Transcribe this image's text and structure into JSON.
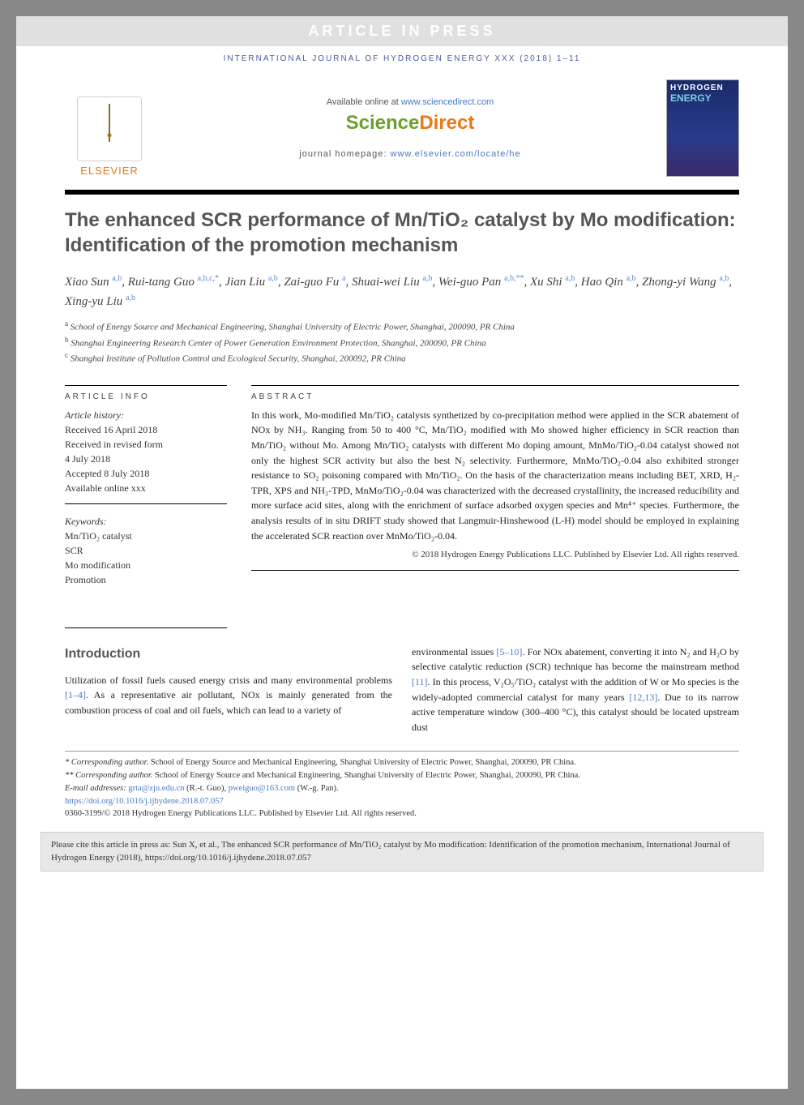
{
  "banner": "ARTICLE IN PRESS",
  "journal_header_line": "INTERNATIONAL JOURNAL OF HYDROGEN ENERGY XXX (2018) 1–11",
  "available_prefix": "Available online at ",
  "available_link": "www.sciencedirect.com",
  "sd_logo_s": "Science",
  "sd_logo_d": "Direct",
  "homepage_prefix": "journal homepage: ",
  "homepage_link": "www.elsevier.com/locate/he",
  "elsevier_label": "ELSEVIER",
  "cover_line1": "HYDROGEN",
  "cover_line2": "ENERGY",
  "title": "The enhanced SCR performance of Mn/TiO₂ catalyst by Mo modification: Identification of the promotion mechanism",
  "authors_html": "Xiao Sun <span class='sup'>a,b</span>, Rui-tang Guo <span class='sup'>a,b,c,*</span>, Jian Liu <span class='sup'>a,b</span>, Zai-guo Fu <span class='sup'>a</span>, Shuai-wei Liu <span class='sup'>a,b</span>, Wei-guo Pan <span class='sup'>a,b,**</span>, Xu Shi <span class='sup'>a,b</span>, Hao Qin <span class='sup'>a,b</span>, Zhong-yi Wang <span class='sup'>a,b</span>, Xing-yu Liu <span class='sup'>a,b</span>",
  "affiliations": {
    "a": "School of Energy Source and Mechanical Engineering, Shanghai University of Electric Power, Shanghai, 200090, PR China",
    "b": "Shanghai Engineering Research Center of Power Generation Environment Protection, Shanghai, 200090, PR China",
    "c": "Shanghai Institute of Pollution Control and Ecological Security, Shanghai, 200092, PR China"
  },
  "article_info_head": "ARTICLE INFO",
  "abstract_head": "ABSTRACT",
  "history_label": "Article history:",
  "history": {
    "received": "Received 16 April 2018",
    "revised1": "Received in revised form",
    "revised2": "4 July 2018",
    "accepted": "Accepted 8 July 2018",
    "online": "Available online xxx"
  },
  "keywords_label": "Keywords:",
  "keywords": [
    "Mn/TiO₂ catalyst",
    "SCR",
    "Mo modification",
    "Promotion"
  ],
  "abstract": "In this work, Mo-modified Mn/TiO₂ catalysts synthetized by co-precipitation method were applied in the SCR abatement of NOx by NH₃. Ranging from 50 to 400 °C, Mn/TiO₂ modified with Mo showed higher efficiency in SCR reaction than Mn/TiO₂ without Mo. Among Mn/TiO₂ catalysts with different Mo doping amount, MnMo/TiO₂-0.04 catalyst showed not only the highest SCR activity but also the best N₂ selectivity. Furthermore, MnMo/TiO₂-0.04 also exhibited stronger resistance to SO₂ poisoning compared with Mn/TiO₂. On the basis of the characterization means including BET, XRD, H₂-TPR, XPS and NH₃-TPD, MnMo/TiO₂-0.04 was characterized with the decreased crystallinity, the increased reducibility and more surface acid sites, along with the enrichment of surface adsorbed oxygen species and Mn⁴⁺ species. Furthermore, the analysis results of in situ DRIFT study showed that Langmuir-Hinshewood (L-H) model should be employed in explaining the accelerated SCR reaction over MnMo/TiO₂-0.04.",
  "copyright_line": "© 2018 Hydrogen Energy Publications LLC. Published by Elsevier Ltd. All rights reserved.",
  "intro_head": "Introduction",
  "intro_col1": "Utilization of fossil fuels caused energy crisis and many environmental problems [1–4]. As a representative air pollutant, NOx is mainly generated from the combustion process of coal and oil fuels, which can lead to a variety of",
  "intro_col2": "environmental issues [5–10]. For NOx abatement, converting it into N₂ and H₂O by selective catalytic reduction (SCR) technique has become the mainstream method [11]. In this process, V₂O₅/TiO₂ catalyst with the addition of W or Mo species is the widely-adopted commercial catalyst for many years [12,13]. Due to its narrow active temperature window (300–400 °C), this catalyst should be located upstream dust",
  "footnotes": {
    "corr1_label": "* Corresponding author.",
    "corr1_text": " School of Energy Source and Mechanical Engineering, Shanghai University of Electric Power, Shanghai, 200090, PR China.",
    "corr2_label": "** Corresponding author.",
    "corr2_text": " School of Energy Source and Mechanical Engineering, Shanghai University of Electric Power, Shanghai, 200090, PR China.",
    "email_label": "E-mail addresses: ",
    "email1": "grta@zju.edu.cn",
    "email1_who": " (R.-t. Guo), ",
    "email2": "pweiguo@163.com",
    "email2_who": " (W.-g. Pan).",
    "doi": "https://doi.org/10.1016/j.ijhydene.2018.07.057",
    "issn_line": "0360-3199/© 2018 Hydrogen Energy Publications LLC. Published by Elsevier Ltd. All rights reserved."
  },
  "cite_box": "Please cite this article in press as: Sun X, et al., The enhanced SCR performance of Mn/TiO₂ catalyst by Mo modification: Identification of the promotion mechanism, International Journal of Hydrogen Energy (2018), https://doi.org/10.1016/j.ijhydene.2018.07.057",
  "colors": {
    "banner_bg": "#e0e0e0",
    "link": "#4a7ac0",
    "heading": "#555555",
    "elsevier_orange": "#e67a17",
    "sd_green": "#6aa12a"
  }
}
